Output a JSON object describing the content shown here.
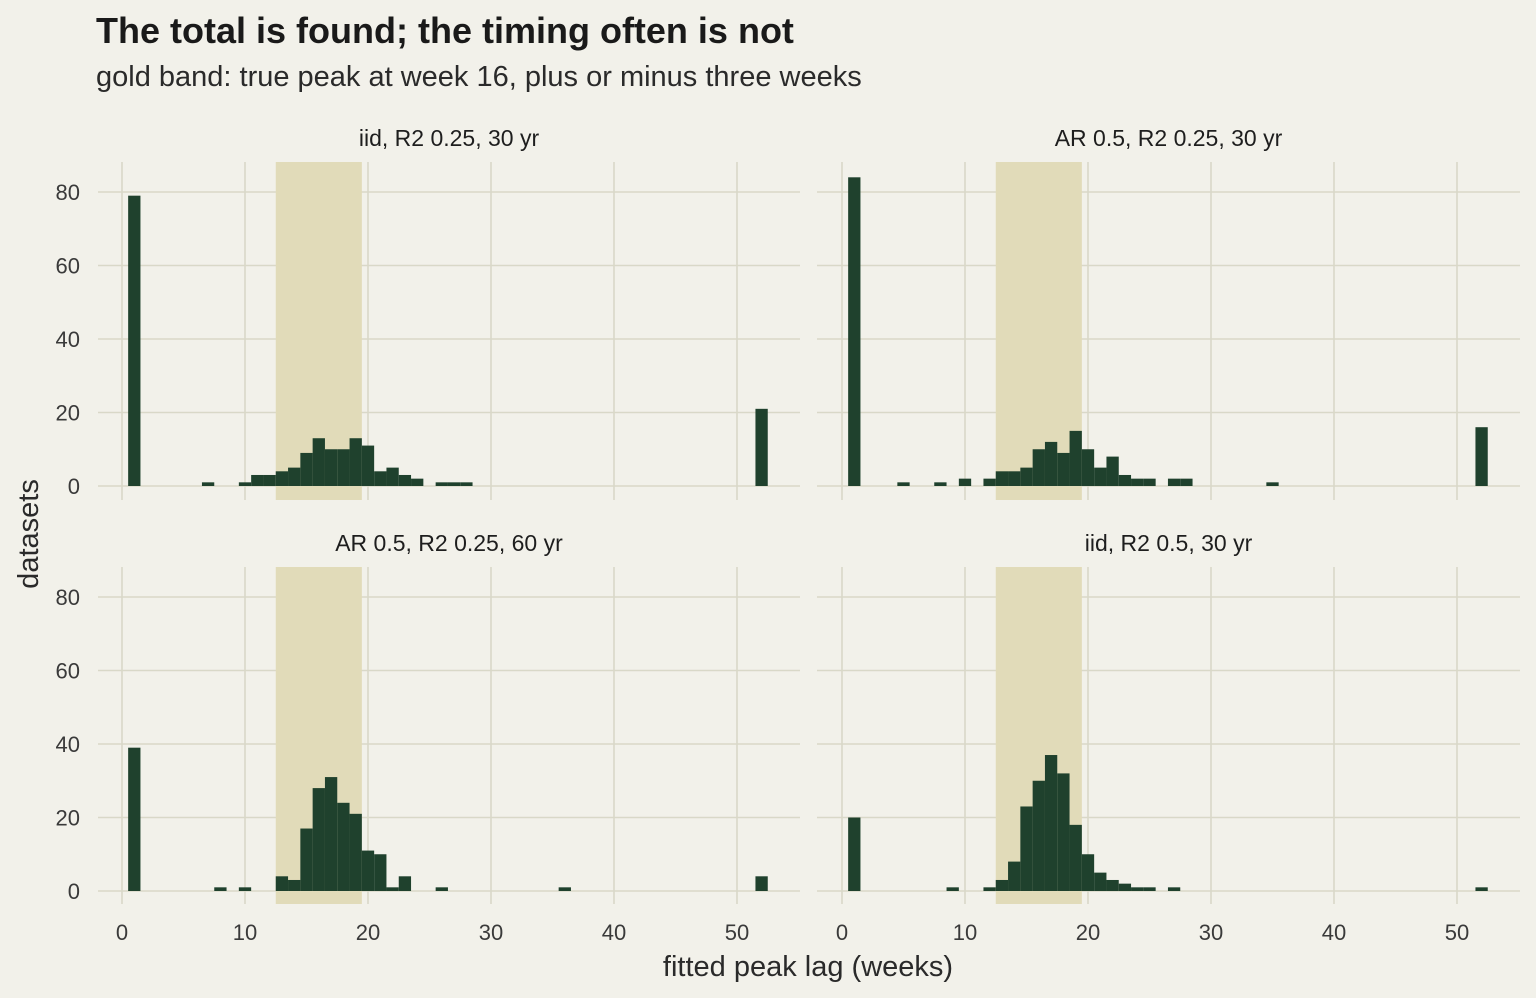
{
  "title": "The total is found; the timing often is not",
  "subtitle": "gold band: true peak at week 16, plus or minus three weeks",
  "colors": {
    "background": "#f2f1ea",
    "grid": "#d9d8c8",
    "band": "#e1dbb9",
    "bar": "#1f412d"
  },
  "chart_data": {
    "type": "bar",
    "layout": "facet 2x2 histogram",
    "xlabel": "fitted peak lag (weeks)",
    "ylabel": "datasets",
    "xlim": [
      -1,
      55
    ],
    "ylim": [
      0,
      88
    ],
    "xticks": [
      0,
      10,
      20,
      30,
      40,
      50
    ],
    "yticks": [
      0,
      20,
      40,
      60,
      80
    ],
    "bin_width": 1,
    "band": {
      "label": "true peak at week 16, plus or minus three weeks",
      "from": 12.5,
      "to": 19.5
    },
    "grid": true,
    "panels": [
      {
        "title": "iid, R2 0.25, 30 yr",
        "x": [
          1,
          7,
          10,
          11,
          12,
          13,
          14,
          15,
          16,
          17,
          18,
          19,
          20,
          21,
          22,
          23,
          24,
          26,
          27,
          28,
          52
        ],
        "values": [
          79,
          1,
          1,
          3,
          3,
          4,
          5,
          9,
          13,
          10,
          10,
          13,
          11,
          4,
          5,
          3,
          2,
          1,
          1,
          1,
          21
        ]
      },
      {
        "title": "AR 0.5, R2 0.25, 30 yr",
        "x": [
          1,
          5,
          8,
          10,
          12,
          13,
          14,
          15,
          16,
          17,
          18,
          19,
          20,
          21,
          22,
          23,
          24,
          25,
          27,
          28,
          35,
          52
        ],
        "values": [
          84,
          1,
          1,
          2,
          2,
          4,
          4,
          5,
          10,
          12,
          9,
          15,
          10,
          5,
          8,
          3,
          2,
          2,
          2,
          2,
          1,
          16
        ]
      },
      {
        "title": "AR 0.5, R2 0.25, 60 yr",
        "x": [
          1,
          8,
          10,
          13,
          14,
          15,
          16,
          17,
          18,
          19,
          20,
          21,
          22,
          23,
          26,
          36,
          52
        ],
        "values": [
          39,
          1,
          1,
          4,
          3,
          17,
          28,
          31,
          24,
          21,
          11,
          10,
          1,
          4,
          1,
          1,
          4
        ]
      },
      {
        "title": "iid, R2 0.5, 30 yr",
        "x": [
          1,
          9,
          12,
          13,
          14,
          15,
          16,
          17,
          18,
          19,
          20,
          21,
          22,
          23,
          24,
          25,
          27,
          52
        ],
        "values": [
          20,
          1,
          1,
          3,
          8,
          23,
          30,
          37,
          32,
          18,
          10,
          5,
          3,
          2,
          1,
          1,
          1,
          1
        ]
      }
    ]
  }
}
